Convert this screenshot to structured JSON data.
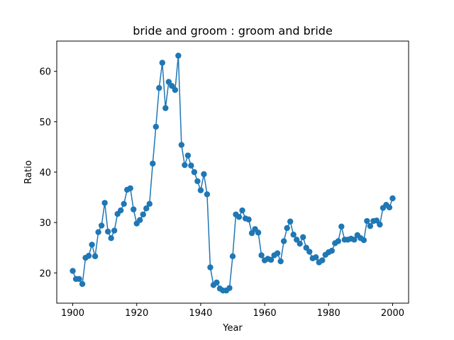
{
  "chart_data": {
    "type": "line",
    "title": "bride and groom : groom and bride",
    "xlabel": "Year",
    "ylabel": "Ratio",
    "xlim": [
      1895,
      2005
    ],
    "ylim": [
      14,
      66
    ],
    "xticks": [
      1900,
      1920,
      1940,
      1960,
      1980,
      2000
    ],
    "yticks": [
      20,
      30,
      40,
      50,
      60
    ],
    "grid": false,
    "markers": true,
    "color": "#1f77b4",
    "series": [
      {
        "x": [
          1900,
          1901,
          1902,
          1903,
          1904,
          1905,
          1906,
          1907,
          1908,
          1909,
          1910,
          1911,
          1912,
          1913,
          1914,
          1915,
          1916,
          1917,
          1918,
          1919,
          1920,
          1921,
          1922,
          1923,
          1924,
          1925,
          1926,
          1927,
          1928,
          1929,
          1930,
          1931,
          1932,
          1933,
          1934,
          1935,
          1936,
          1937,
          1938,
          1939,
          1940,
          1941,
          1942,
          1943,
          1944,
          1945,
          1946,
          1947,
          1948,
          1949,
          1950,
          1951,
          1952,
          1953,
          1954,
          1955,
          1956,
          1957,
          1958,
          1959,
          1960,
          1961,
          1962,
          1963,
          1964,
          1965,
          1966,
          1967,
          1968,
          1969,
          1970,
          1971,
          1972,
          1973,
          1974,
          1975,
          1976,
          1977,
          1978,
          1979,
          1980,
          1981,
          1982,
          1983,
          1984,
          1985,
          1986,
          1987,
          1988,
          1989,
          1990,
          1991,
          1992,
          1993,
          1994,
          1995,
          1996,
          1997,
          1998,
          1999,
          2000
        ],
        "y": [
          20.4,
          18.8,
          18.8,
          17.8,
          23.0,
          23.4,
          25.6,
          23.3,
          28.1,
          29.4,
          33.9,
          28.2,
          26.9,
          28.4,
          31.7,
          32.4,
          33.7,
          36.5,
          36.8,
          32.6,
          29.8,
          30.5,
          31.6,
          32.8,
          33.7,
          41.7,
          49.0,
          56.7,
          61.7,
          52.7,
          57.9,
          57.1,
          56.3,
          63.1,
          45.4,
          41.4,
          43.3,
          41.3,
          40.0,
          38.2,
          36.4,
          39.6,
          35.6,
          21.1,
          17.6,
          18.1,
          16.9,
          16.5,
          16.5,
          17.0,
          23.3,
          31.6,
          31.1,
          32.4,
          30.8,
          30.6,
          27.9,
          28.7,
          28.0,
          23.5,
          22.5,
          22.8,
          22.6,
          23.5,
          23.9,
          22.3,
          26.3,
          28.9,
          30.2,
          27.6,
          26.6,
          25.8,
          27.1,
          25.0,
          24.2,
          22.9,
          23.1,
          22.1,
          22.5,
          23.6,
          24.1,
          24.4,
          25.9,
          26.3,
          29.2,
          26.6,
          26.6,
          26.8,
          26.6,
          27.5,
          26.9,
          26.5,
          30.3,
          29.3,
          30.3,
          30.4,
          29.6,
          32.9,
          33.5,
          33.0,
          34.8
        ]
      }
    ]
  }
}
